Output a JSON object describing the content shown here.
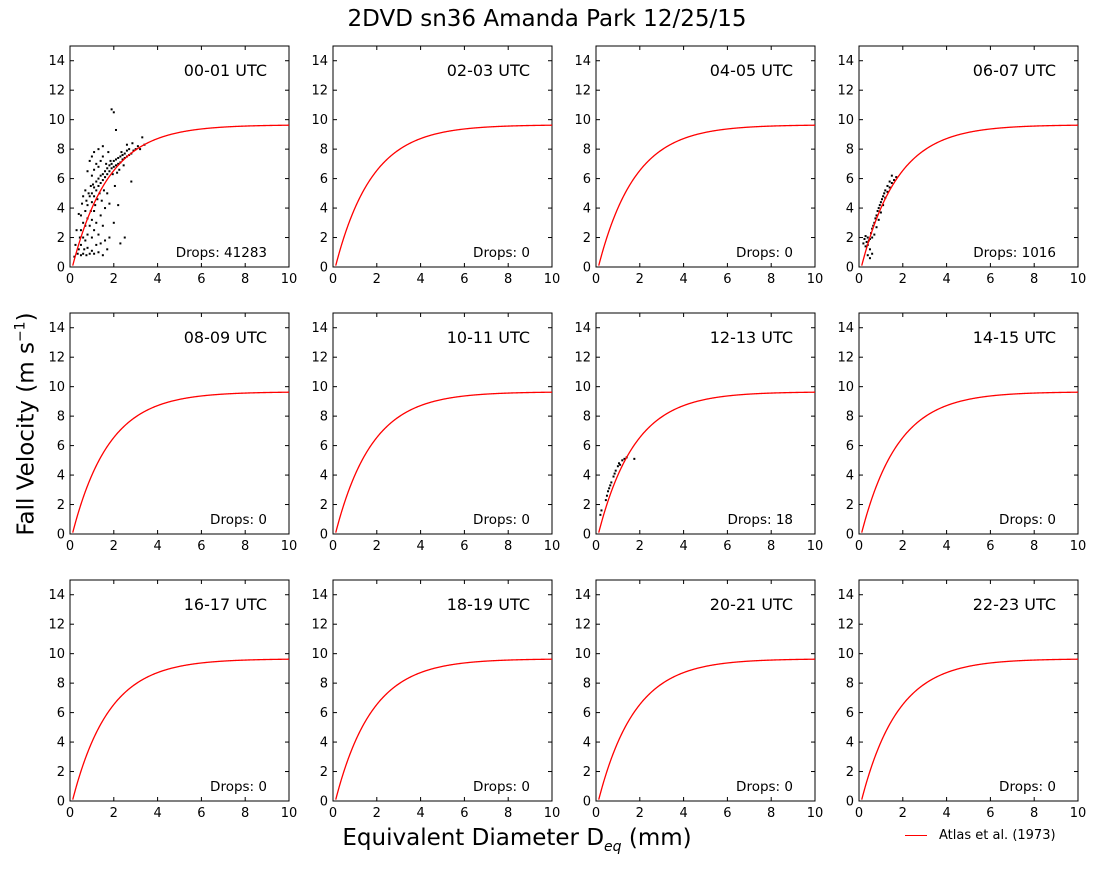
{
  "figure": {
    "title": "2DVD sn36 Amanda Park 12/25/15",
    "ylabel_main": "Fall Velocity (m s",
    "ylabel_sup": "−1",
    "ylabel_close": ")",
    "xlabel_main": "Equivalent Diameter D",
    "xlabel_sub": "eq",
    "xlabel_close": " (mm)",
    "legend_label": "Atlas et al. (1973)"
  },
  "chart_data": {
    "type": "scatter",
    "layout": "3x4 small multiples",
    "xlim": [
      0,
      10
    ],
    "ylim": [
      0,
      15
    ],
    "xticks": [
      0,
      2,
      4,
      6,
      8,
      10
    ],
    "yticks": [
      0,
      2,
      4,
      6,
      8,
      10,
      12,
      14
    ],
    "grid": false,
    "reference_curve": {
      "name": "Atlas et al. (1973)",
      "formula": "v = 9.65 - 10.3 * exp(-0.6 * D)",
      "color": "#ff0000"
    },
    "scatter_color": "#000000",
    "panels": [
      {
        "label": "00-01 UTC",
        "drops_text": "Drops: 41283",
        "drops": 41283,
        "points": [
          [
            0.2,
            0.7
          ],
          [
            0.25,
            1.5
          ],
          [
            0.3,
            2.5
          ],
          [
            0.35,
            0.9
          ],
          [
            0.4,
            3.6
          ],
          [
            0.4,
            1.2
          ],
          [
            0.45,
            2.0
          ],
          [
            0.5,
            0.8
          ],
          [
            0.5,
            1.5
          ],
          [
            0.5,
            2.5
          ],
          [
            0.5,
            3.5
          ],
          [
            0.55,
            4.3
          ],
          [
            0.6,
            0.9
          ],
          [
            0.6,
            2.0
          ],
          [
            0.6,
            3.0
          ],
          [
            0.6,
            4.8
          ],
          [
            0.65,
            1.2
          ],
          [
            0.7,
            1.8
          ],
          [
            0.7,
            2.8
          ],
          [
            0.7,
            3.8
          ],
          [
            0.7,
            5.2
          ],
          [
            0.75,
            0.8
          ],
          [
            0.75,
            4.5
          ],
          [
            0.8,
            1.3
          ],
          [
            0.8,
            2.2
          ],
          [
            0.8,
            3.3
          ],
          [
            0.8,
            4.2
          ],
          [
            0.8,
            6.5
          ],
          [
            0.85,
            5.0
          ],
          [
            0.9,
            0.9
          ],
          [
            0.9,
            2.8
          ],
          [
            0.9,
            4.8
          ],
          [
            0.9,
            7.2
          ],
          [
            0.95,
            3.8
          ],
          [
            0.95,
            5.5
          ],
          [
            1.0,
            1.1
          ],
          [
            1.0,
            2.0
          ],
          [
            1.0,
            3.2
          ],
          [
            1.0,
            4.4
          ],
          [
            1.0,
            5.0
          ],
          [
            1.0,
            6.2
          ],
          [
            1.0,
            7.5
          ],
          [
            1.05,
            5.6
          ],
          [
            1.1,
            0.9
          ],
          [
            1.1,
            2.5
          ],
          [
            1.1,
            3.8
          ],
          [
            1.1,
            4.8
          ],
          [
            1.1,
            5.4
          ],
          [
            1.1,
            6.6
          ],
          [
            1.1,
            7.8
          ],
          [
            1.15,
            4.2
          ],
          [
            1.2,
            1.5
          ],
          [
            1.2,
            3.0
          ],
          [
            1.2,
            5.2
          ],
          [
            1.2,
            5.8
          ],
          [
            1.2,
            7.0
          ],
          [
            1.25,
            4.6
          ],
          [
            1.3,
            1.0
          ],
          [
            1.3,
            2.2
          ],
          [
            1.3,
            5.5
          ],
          [
            1.3,
            6.0
          ],
          [
            1.3,
            6.8
          ],
          [
            1.3,
            8.0
          ],
          [
            1.35,
            5.0
          ],
          [
            1.4,
            1.6
          ],
          [
            1.4,
            3.5
          ],
          [
            1.4,
            5.7
          ],
          [
            1.4,
            6.2
          ],
          [
            1.4,
            7.2
          ],
          [
            1.45,
            4.5
          ],
          [
            1.5,
            0.8
          ],
          [
            1.5,
            2.8
          ],
          [
            1.5,
            5.9
          ],
          [
            1.5,
            6.3
          ],
          [
            1.5,
            7.5
          ],
          [
            1.5,
            8.2
          ],
          [
            1.55,
            5.2
          ],
          [
            1.6,
            1.8
          ],
          [
            1.6,
            6.1
          ],
          [
            1.6,
            6.5
          ],
          [
            1.6,
            4.0
          ],
          [
            1.65,
            7.0
          ],
          [
            1.7,
            1.2
          ],
          [
            1.7,
            6.3
          ],
          [
            1.7,
            6.7
          ],
          [
            1.7,
            5.0
          ],
          [
            1.75,
            7.8
          ],
          [
            1.8,
            2.0
          ],
          [
            1.8,
            6.5
          ],
          [
            1.8,
            6.9
          ],
          [
            1.8,
            4.3
          ],
          [
            1.85,
            7.2
          ],
          [
            1.9,
            6.7
          ],
          [
            1.9,
            7.0
          ],
          [
            1.9,
            10.7
          ],
          [
            1.95,
            6.3
          ],
          [
            2.0,
            6.8
          ],
          [
            2.0,
            7.2
          ],
          [
            2.0,
            10.5
          ],
          [
            2.0,
            3.0
          ],
          [
            2.05,
            5.5
          ],
          [
            2.1,
            6.9
          ],
          [
            2.1,
            7.3
          ],
          [
            2.1,
            9.3
          ],
          [
            2.15,
            6.4
          ],
          [
            2.2,
            7.0
          ],
          [
            2.2,
            7.4
          ],
          [
            2.2,
            4.2
          ],
          [
            2.25,
            6.6
          ],
          [
            2.3,
            7.1
          ],
          [
            2.3,
            7.5
          ],
          [
            2.3,
            1.6
          ],
          [
            2.35,
            7.8
          ],
          [
            2.4,
            7.3
          ],
          [
            2.4,
            7.6
          ],
          [
            2.45,
            6.9
          ],
          [
            2.5,
            7.4
          ],
          [
            2.5,
            7.7
          ],
          [
            2.5,
            2.0
          ],
          [
            2.6,
            7.5
          ],
          [
            2.6,
            7.9
          ],
          [
            2.6,
            8.3
          ],
          [
            2.7,
            7.6
          ],
          [
            2.7,
            8.0
          ],
          [
            2.8,
            7.7
          ],
          [
            2.8,
            5.8
          ],
          [
            2.85,
            8.4
          ],
          [
            2.9,
            7.9
          ],
          [
            3.0,
            8.0
          ],
          [
            3.1,
            8.2
          ],
          [
            3.2,
            8.0
          ],
          [
            3.3,
            8.8
          ],
          [
            3.4,
            8.3
          ]
        ]
      },
      {
        "label": "02-03 UTC",
        "drops_text": "Drops: 0",
        "drops": 0,
        "points": []
      },
      {
        "label": "04-05 UTC",
        "drops_text": "Drops: 0",
        "drops": 0,
        "points": []
      },
      {
        "label": "06-07 UTC",
        "drops_text": "Drops: 1016",
        "drops": 1016,
        "points": [
          [
            0.2,
            1.6
          ],
          [
            0.25,
            1.9
          ],
          [
            0.3,
            1.4
          ],
          [
            0.3,
            2.1
          ],
          [
            0.35,
            1.7
          ],
          [
            0.4,
            0.8
          ],
          [
            0.4,
            1.5
          ],
          [
            0.4,
            2.0
          ],
          [
            0.45,
            1.8
          ],
          [
            0.5,
            0.6
          ],
          [
            0.5,
            1.2
          ],
          [
            0.5,
            1.9
          ],
          [
            0.55,
            2.3
          ],
          [
            0.6,
            2.0
          ],
          [
            0.6,
            2.6
          ],
          [
            0.6,
            0.9
          ],
          [
            0.65,
            2.8
          ],
          [
            0.7,
            2.2
          ],
          [
            0.7,
            3.0
          ],
          [
            0.75,
            3.3
          ],
          [
            0.8,
            2.7
          ],
          [
            0.8,
            3.5
          ],
          [
            0.85,
            3.8
          ],
          [
            0.9,
            3.2
          ],
          [
            0.9,
            4.0
          ],
          [
            0.95,
            4.2
          ],
          [
            1.0,
            3.7
          ],
          [
            1.0,
            4.4
          ],
          [
            1.05,
            4.6
          ],
          [
            1.1,
            4.2
          ],
          [
            1.1,
            4.8
          ],
          [
            1.15,
            5.0
          ],
          [
            1.2,
            4.7
          ],
          [
            1.2,
            5.2
          ],
          [
            1.3,
            5.1
          ],
          [
            1.3,
            5.5
          ],
          [
            1.4,
            5.4
          ],
          [
            1.4,
            5.8
          ],
          [
            1.5,
            5.7
          ],
          [
            1.5,
            6.2
          ],
          [
            1.6,
            5.9
          ],
          [
            1.7,
            6.1
          ]
        ]
      },
      {
        "label": "08-09 UTC",
        "drops_text": "Drops: 0",
        "drops": 0,
        "points": []
      },
      {
        "label": "10-11 UTC",
        "drops_text": "Drops: 0",
        "drops": 0,
        "points": []
      },
      {
        "label": "12-13 UTC",
        "drops_text": "Drops: 18",
        "drops": 18,
        "points": [
          [
            0.2,
            1.3
          ],
          [
            0.25,
            1.6
          ],
          [
            0.45,
            2.3
          ],
          [
            0.5,
            2.6
          ],
          [
            0.55,
            2.9
          ],
          [
            0.6,
            3.1
          ],
          [
            0.65,
            3.3
          ],
          [
            0.7,
            3.5
          ],
          [
            0.8,
            3.9
          ],
          [
            0.85,
            4.1
          ],
          [
            0.9,
            4.3
          ],
          [
            1.0,
            4.6
          ],
          [
            1.05,
            4.8
          ],
          [
            1.1,
            4.7
          ],
          [
            1.2,
            5.0
          ],
          [
            1.3,
            5.1
          ],
          [
            1.4,
            5.2
          ],
          [
            1.75,
            5.1
          ]
        ]
      },
      {
        "label": "14-15 UTC",
        "drops_text": "Drops: 0",
        "drops": 0,
        "points": []
      },
      {
        "label": "16-17 UTC",
        "drops_text": "Drops: 0",
        "drops": 0,
        "points": []
      },
      {
        "label": "18-19 UTC",
        "drops_text": "Drops: 0",
        "drops": 0,
        "points": []
      },
      {
        "label": "20-21 UTC",
        "drops_text": "Drops: 0",
        "drops": 0,
        "points": []
      },
      {
        "label": "22-23 UTC",
        "drops_text": "Drops: 0",
        "drops": 0,
        "points": []
      }
    ]
  }
}
